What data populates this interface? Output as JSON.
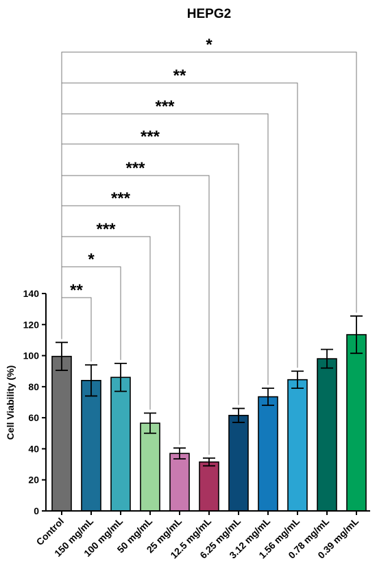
{
  "chart_data": {
    "type": "bar",
    "title": "HEPG2",
    "ylabel": "Cell Viability (%)",
    "xlabel": "",
    "ylim": [
      0,
      140
    ],
    "yticks": [
      0,
      20,
      40,
      60,
      80,
      100,
      120,
      140
    ],
    "categories": [
      "Control",
      "150 mg/mL",
      "100 mg/mL",
      "50 mg/mL",
      "25 mg/mL",
      "12.5 mg/mL",
      "6.25 mg/mL",
      "3.12 mg/mL",
      "1.56 mg/mL",
      "0.78 mg/mL",
      "0.39 mg/mL"
    ],
    "values": [
      99.5,
      84,
      86,
      56.5,
      37,
      31.5,
      61.5,
      73.5,
      84.5,
      98,
      113.5
    ],
    "errors": [
      9,
      10,
      9,
      6.5,
      3.5,
      2.5,
      4.5,
      5.5,
      5.5,
      6,
      12
    ],
    "colors": [
      "#6e6e6e",
      "#1b6f97",
      "#3aaab8",
      "#9bd69b",
      "#c97ab0",
      "#a8335f",
      "#0b4a78",
      "#1379bb",
      "#2aa5d3",
      "#006a5a",
      "#00a259"
    ],
    "significance": [
      "**",
      "*",
      "***",
      "***",
      "***",
      "***",
      "***",
      "**",
      "*"
    ],
    "significance_targets": [
      1,
      2,
      3,
      4,
      5,
      6,
      7,
      8,
      10
    ],
    "grid": false,
    "legend": "none"
  }
}
